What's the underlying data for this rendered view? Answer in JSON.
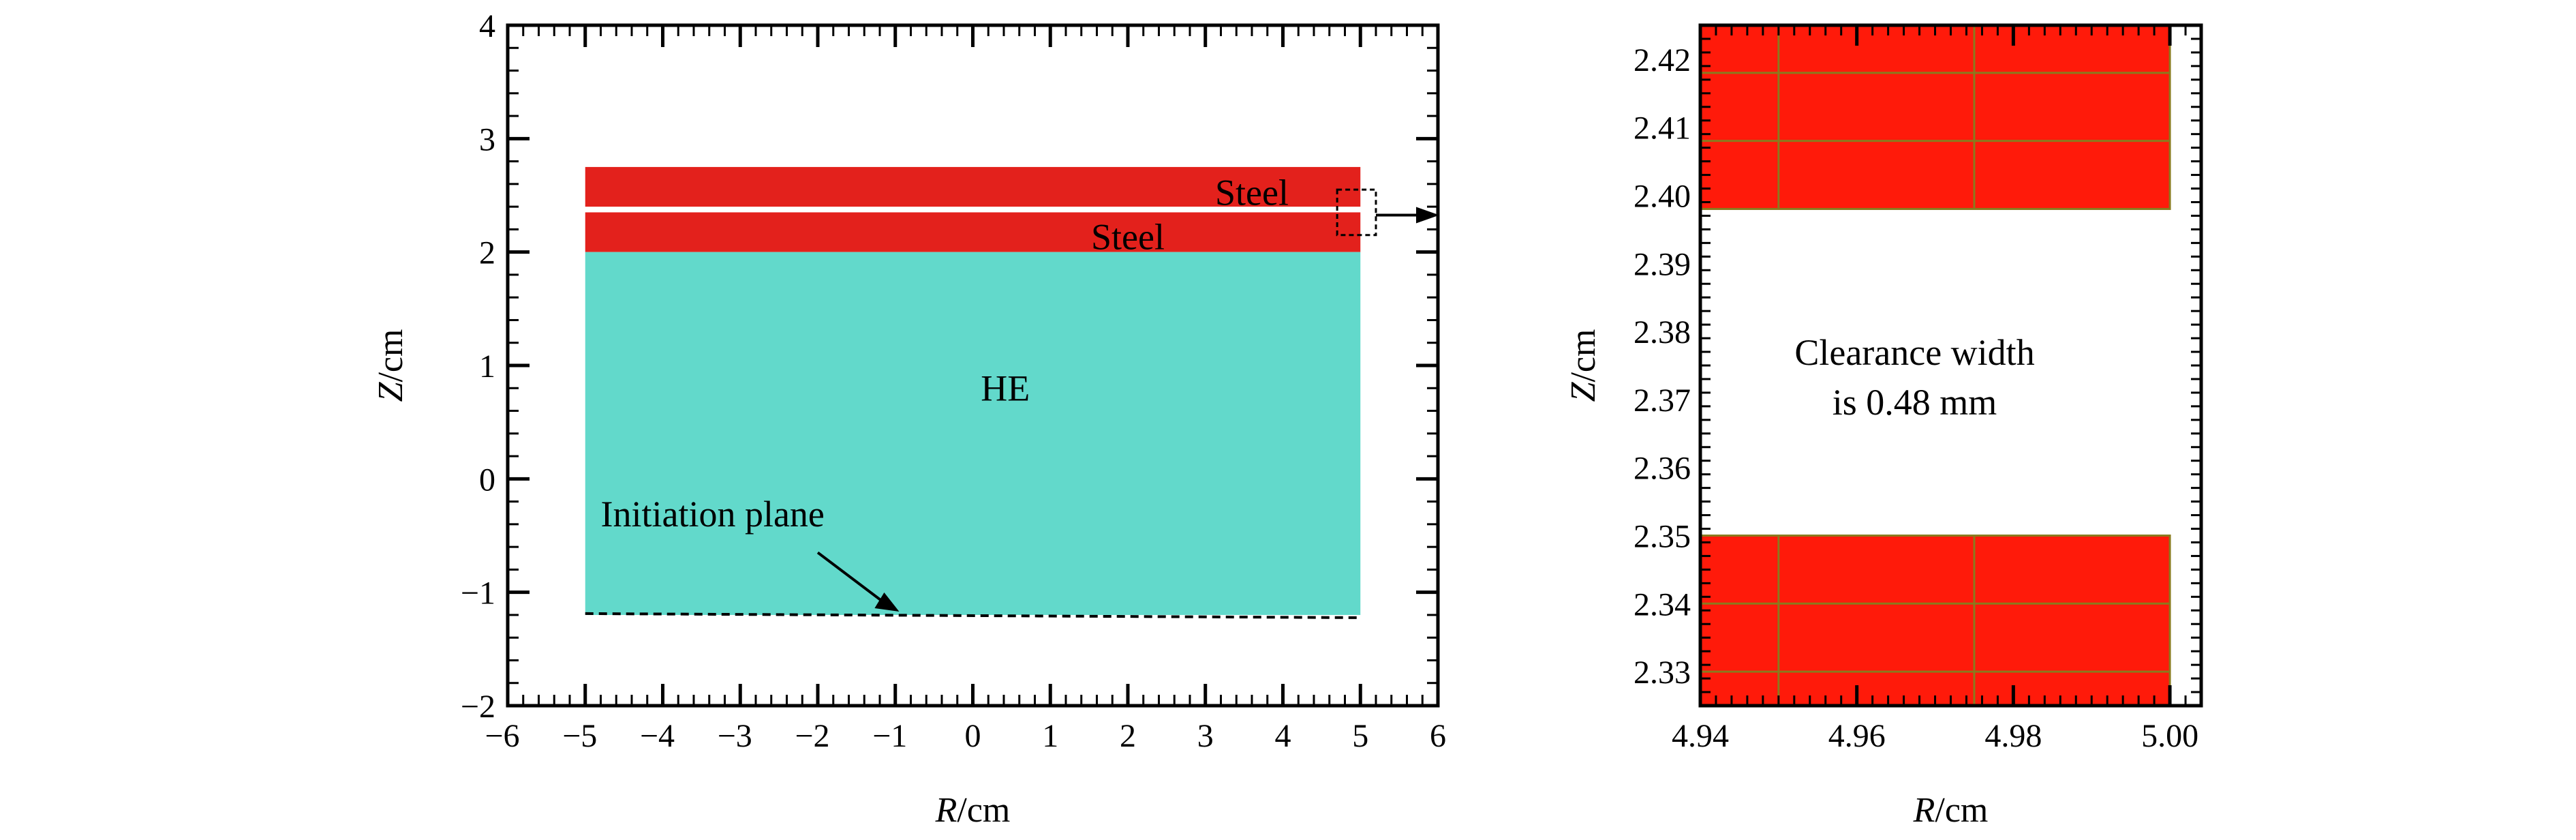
{
  "colors": {
    "steel": "#e3211c",
    "steel_zoom": "#ff1a0a",
    "he": "#62d9cb",
    "mesh_line": "#8a7a1e",
    "axis": "#000000",
    "background": "#ffffff"
  },
  "left_panel": {
    "x_axis": {
      "label_italic": "R",
      "label_unit": "/cm",
      "range": [
        -6,
        6
      ],
      "ticks": [
        "−6",
        "−5",
        "−4",
        "−3",
        "−2",
        "−1",
        "0",
        "1",
        "2",
        "3",
        "4",
        "5",
        "6"
      ]
    },
    "y_axis": {
      "label_italic": "Z",
      "label_unit": "/cm",
      "range": [
        -2,
        4
      ],
      "ticks": [
        "−2",
        "−1",
        "0",
        "1",
        "2",
        "3",
        "4"
      ]
    },
    "regions": [
      {
        "name": "Steel",
        "material": "steel",
        "r": [
          -5,
          5
        ],
        "z": [
          2.4,
          2.75
        ]
      },
      {
        "name": "Steel",
        "material": "steel",
        "r": [
          -5,
          5
        ],
        "z": [
          2.0,
          2.35
        ]
      },
      {
        "name": "HE",
        "material": "he",
        "r": [
          -5,
          5
        ],
        "z": [
          -1.2,
          2.0
        ]
      }
    ],
    "labels": {
      "steel_upper": "Steel",
      "steel_lower": "Steel",
      "he": "HE",
      "initiation": "Initiation plane"
    },
    "initiation_plane_z": -1.2,
    "zoom_box": {
      "r": [
        4.7,
        5.2
      ],
      "z": [
        2.15,
        2.55
      ]
    }
  },
  "right_panel": {
    "x_axis": {
      "label_italic": "R",
      "label_unit": "/cm",
      "range": [
        4.94,
        5.004
      ],
      "ticks": [
        "4.94",
        "4.96",
        "4.98",
        "5.00"
      ]
    },
    "y_axis": {
      "label_italic": "Z",
      "label_unit": "/cm",
      "range": [
        2.325,
        2.425
      ],
      "ticks": [
        "2.33",
        "2.34",
        "2.35",
        "2.36",
        "2.37",
        "2.38",
        "2.39",
        "2.40",
        "2.41",
        "2.42"
      ]
    },
    "steel_upper_z": [
      2.398,
      2.425
    ],
    "steel_lower_z": [
      2.325,
      2.35
    ],
    "steel_r": [
      4.94,
      5.0
    ],
    "mesh_r": [
      4.95,
      4.975
    ],
    "mesh_z_upper": [
      2.408,
      2.418
    ],
    "mesh_z_lower": [
      2.33,
      2.34
    ],
    "annotation_line1": "Clearance width",
    "annotation_line2": "is 0.48 mm"
  }
}
